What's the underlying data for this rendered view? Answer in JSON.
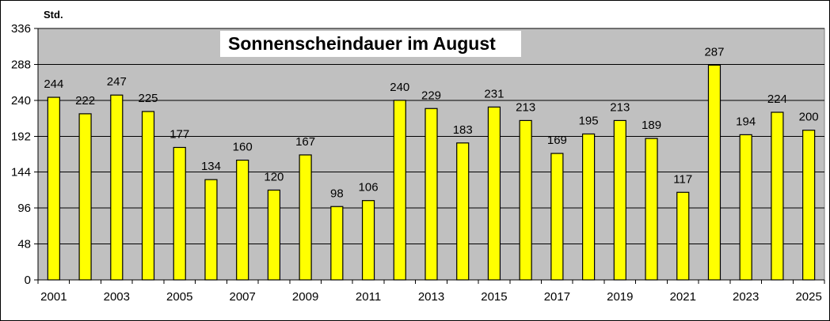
{
  "chart_data": {
    "type": "bar",
    "title": "Sonnenscheindauer im August",
    "ylabel": "Std.",
    "xlabel": "",
    "ylim": [
      0,
      336
    ],
    "yticks": [
      0,
      48,
      96,
      144,
      192,
      240,
      288,
      336
    ],
    "categories": [
      "2001",
      "2002",
      "2003",
      "2004",
      "2005",
      "2006",
      "2007",
      "2008",
      "2009",
      "2010",
      "2011",
      "2012",
      "2013",
      "2014",
      "2015",
      "2016",
      "2017",
      "2018",
      "2019",
      "2020",
      "2021",
      "2022",
      "2023",
      "2024",
      "2025"
    ],
    "xtick_labels": [
      "2001",
      "2003",
      "2005",
      "2007",
      "2009",
      "2011",
      "2013",
      "2015",
      "2017",
      "2019",
      "2021",
      "2023",
      "2025"
    ],
    "values": [
      244,
      222,
      247,
      225,
      177,
      134,
      160,
      120,
      167,
      98,
      106,
      240,
      229,
      183,
      231,
      213,
      169,
      195,
      213,
      189,
      117,
      287,
      194,
      224,
      200
    ],
    "grid": true,
    "legend": "none",
    "colors": {
      "bar_fill": "#FFFF00",
      "bar_stroke": "#000000",
      "plot_background": "#C0C0C0",
      "gridline": "#000000",
      "title_box": "#FFFFFF"
    }
  }
}
